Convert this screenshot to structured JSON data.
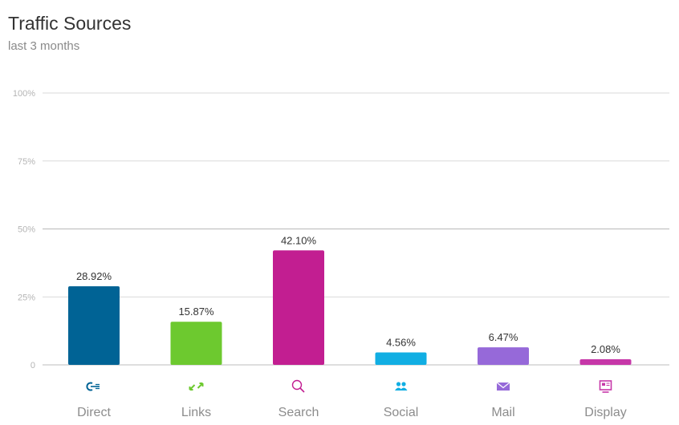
{
  "header": {
    "title": "Traffic Sources",
    "subtitle": "last 3 months"
  },
  "chart_data": {
    "type": "bar",
    "title": "Traffic Sources",
    "subtitle": "last 3 months",
    "xlabel": "",
    "ylabel": "",
    "ylim": [
      0,
      100
    ],
    "yticks": [
      "0",
      "25%",
      "50%",
      "75%",
      "100%"
    ],
    "grid": true,
    "categories": [
      "Direct",
      "Links",
      "Search",
      "Social",
      "Mail",
      "Display"
    ],
    "values": [
      28.92,
      15.87,
      42.1,
      4.56,
      6.47,
      2.08
    ],
    "data_labels": [
      "28.92%",
      "15.87%",
      "42.10%",
      "4.56%",
      "6.47%",
      "2.08%"
    ],
    "colors": [
      "#006395",
      "#6dc92f",
      "#c21e91",
      "#11aee3",
      "#9669d9",
      "#c637a8"
    ],
    "icons": [
      "direct-icon",
      "links-icon",
      "search-icon",
      "social-icon",
      "mail-icon",
      "display-icon"
    ]
  }
}
